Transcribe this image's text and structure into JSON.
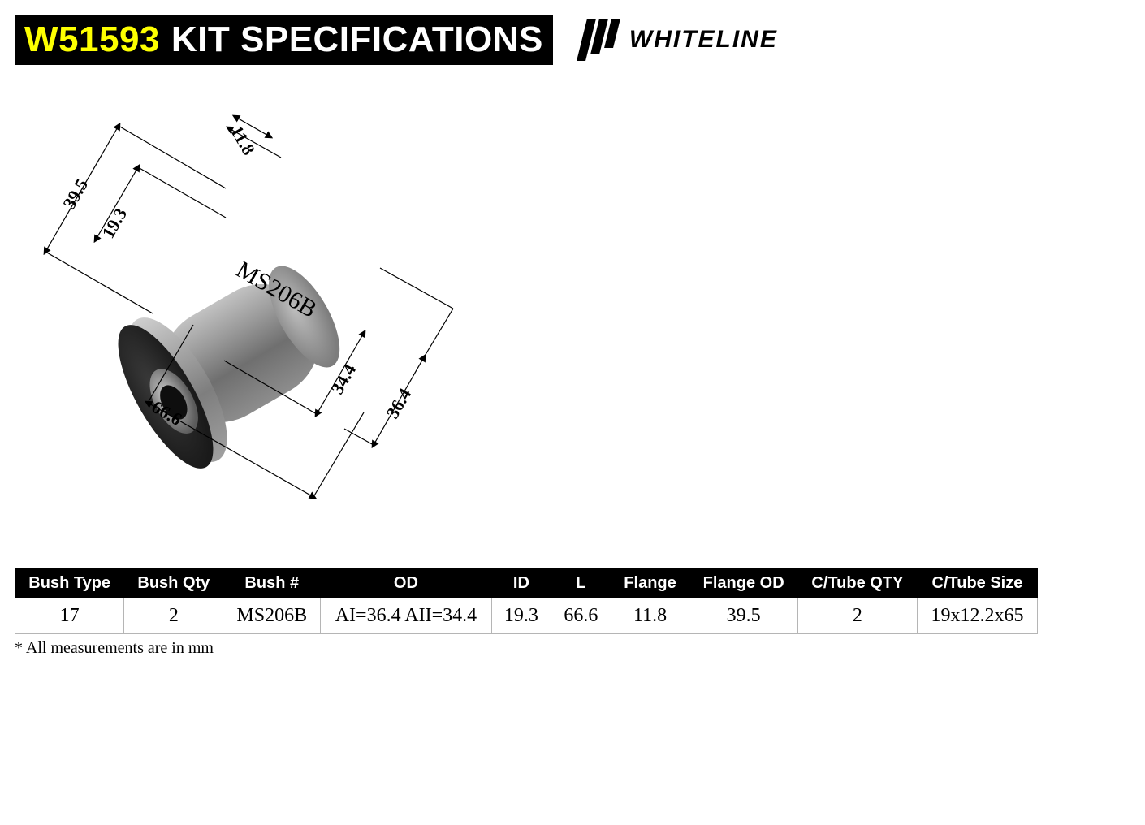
{
  "header": {
    "product_code": "W51593",
    "title_text": "KIT SPECIFICATIONS",
    "brand_name": "WHITELINE",
    "title_bg": "#000000",
    "code_color": "#fdff00",
    "title_color": "#ffffff"
  },
  "diagram": {
    "part_label": "MS206B",
    "dimensions": {
      "flange_thickness": "11.8",
      "flange_od": "39.5",
      "id": "19.3",
      "length": "66.6",
      "od_a2": "34.4",
      "od_a1": "36.4"
    },
    "line_color": "#000000",
    "line_width": 1.4,
    "body_gradient": [
      "#c2c2c2",
      "#9a9a9a",
      "#6f6f6f",
      "#8d8d8d"
    ],
    "flange_face_gradient": [
      "#3a3a3a",
      "#1a1a1a"
    ]
  },
  "spec_table": {
    "columns": [
      "Bush Type",
      "Bush Qty",
      "Bush #",
      "OD",
      "ID",
      "L",
      "Flange",
      "Flange OD",
      "C/Tube QTY",
      "C/Tube Size"
    ],
    "rows": [
      [
        "17",
        "2",
        "MS206B",
        "AI=36.4 AII=34.4",
        "19.3",
        "66.6",
        "11.8",
        "39.5",
        "2",
        "19x12.2x65"
      ]
    ],
    "header_bg": "#000000",
    "header_color": "#ffffff",
    "cell_border": "#b5b5b5",
    "cell_font": "Times New Roman",
    "header_fontsize": 20,
    "cell_fontsize": 24
  },
  "footnote": "* All measurements are in mm"
}
